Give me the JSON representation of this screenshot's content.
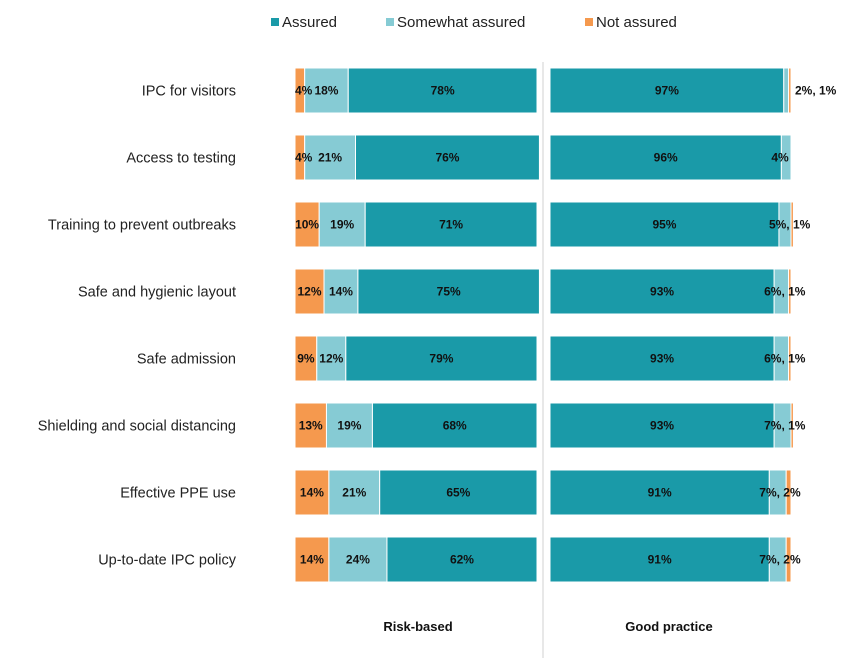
{
  "chart_data": {
    "type": "bar",
    "orientation": "horizontal",
    "stacked": true,
    "categories": [
      "IPC for visitors",
      "Access to testing",
      "Training to prevent outbreaks",
      "Safe and hygienic layout",
      "Safe admission",
      "Shielding and social distancing",
      "Effective PPE use",
      "Up-to-date IPC policy"
    ],
    "legend": {
      "position": "top",
      "items": [
        {
          "label": "Assured",
          "color": "#1a9aa8"
        },
        {
          "label": "Somewhat assured",
          "color": "#86cbd4"
        },
        {
          "label": "Not assured",
          "color": "#f5994e"
        }
      ]
    },
    "panels": [
      {
        "name": "Risk-based",
        "series": [
          {
            "key": "not_assured",
            "values": [
              4,
              4,
              10,
              12,
              9,
              13,
              14,
              14
            ]
          },
          {
            "key": "somewhat_assured",
            "values": [
              18,
              21,
              19,
              14,
              12,
              19,
              21,
              24
            ]
          },
          {
            "key": "assured",
            "values": [
              78,
              76,
              71,
              75,
              79,
              68,
              65,
              62
            ]
          }
        ],
        "labels": [
          [
            "4%",
            "18%",
            "78%"
          ],
          [
            "4%",
            "21%",
            "76%"
          ],
          [
            "10%",
            "19%",
            "71%"
          ],
          [
            "12%",
            "14%",
            "75%"
          ],
          [
            "9%",
            "12%",
            "79%"
          ],
          [
            "13%",
            "19%",
            "68%"
          ],
          [
            "14%",
            "21%",
            "65%"
          ],
          [
            "14%",
            "24%",
            "62%"
          ]
        ]
      },
      {
        "name": "Good practice",
        "series": [
          {
            "key": "assured",
            "values": [
              97,
              96,
              95,
              93,
              93,
              93,
              91,
              91
            ]
          },
          {
            "key": "somewhat_assured",
            "values": [
              2,
              4,
              5,
              6,
              6,
              7,
              7,
              7
            ]
          },
          {
            "key": "not_assured",
            "values": [
              1,
              0,
              1,
              1,
              1,
              1,
              2,
              2
            ]
          }
        ],
        "labels": [
          [
            "97%",
            "2%, 1%"
          ],
          [
            "96%",
            "4%"
          ],
          [
            "95%",
            "5%, 1%"
          ],
          [
            "93%",
            "6%, 1%"
          ],
          [
            "93%",
            "6%, 1%"
          ],
          [
            "93%",
            "7%, 1%"
          ],
          [
            "91%",
            "7%, 2%"
          ],
          [
            "91%",
            "7%, 2%"
          ]
        ]
      }
    ]
  }
}
